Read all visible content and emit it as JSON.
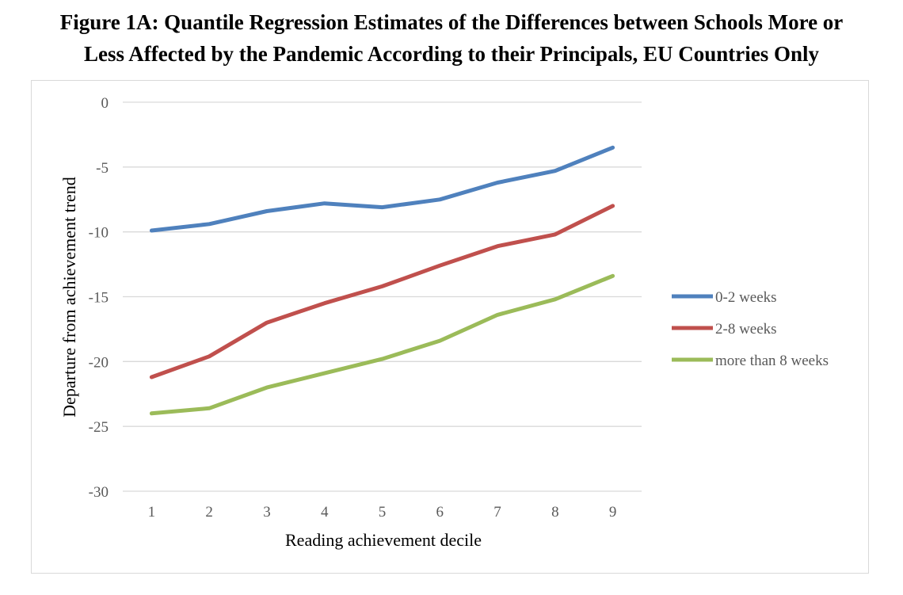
{
  "figure": {
    "title_line1": "Figure 1A: Quantile Regression Estimates of the Differences between Schools More or",
    "title_line2": "Less Affected by the Pandemic According to their Principals, EU Countries Only"
  },
  "chart_data": {
    "type": "line",
    "title": "Figure 1A: Quantile Regression Estimates of the Differences between Schools More or Less Affected by the Pandemic According to their Principals, EU Countries Only",
    "xlabel": "Reading achievement decile",
    "ylabel": "Departure from achievement trend",
    "categories": [
      "1",
      "2",
      "3",
      "4",
      "5",
      "6",
      "7",
      "8",
      "9"
    ],
    "ylim": [
      -30,
      0
    ],
    "yticks": [
      0,
      -5,
      -10,
      -15,
      -20,
      -25,
      -30
    ],
    "grid": "horizontal",
    "legend_position": "right",
    "series": [
      {
        "name": "0-2 weeks",
        "color": "#4f81bd",
        "values": [
          -9.9,
          -9.4,
          -8.4,
          -7.8,
          -8.1,
          -7.5,
          -6.2,
          -5.3,
          -3.5
        ]
      },
      {
        "name": "2-8 weeks",
        "color": "#c0504d",
        "values": [
          -21.2,
          -19.6,
          -17.0,
          -15.5,
          -14.2,
          -12.6,
          -11.1,
          -10.2,
          -8.0
        ]
      },
      {
        "name": "more than 8 weeks",
        "color": "#9bbb59",
        "values": [
          -24.0,
          -23.6,
          -22.0,
          -20.9,
          -19.8,
          -18.4,
          -16.4,
          -15.2,
          -13.4
        ]
      }
    ]
  }
}
